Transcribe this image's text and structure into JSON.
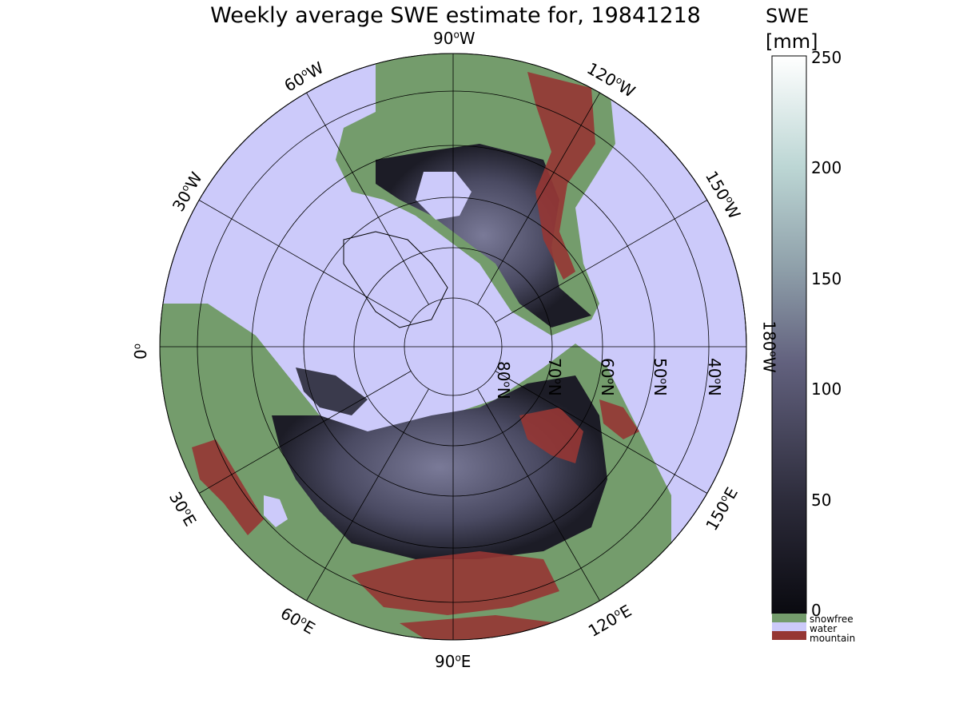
{
  "title": "Weekly average SWE estimate for, 19841218",
  "colorbar": {
    "title": "SWE",
    "unit": "[mm]",
    "ticks": [
      "0",
      "50",
      "100",
      "150",
      "200",
      "250"
    ],
    "range": [
      0,
      250
    ]
  },
  "legend": [
    {
      "label": "snowfree",
      "color": "#749c6c"
    },
    {
      "label": "water",
      "color": "#cccafa"
    },
    {
      "label": "mountain",
      "color": "#963634"
    }
  ],
  "longitude_labels": [
    "0",
    "30E",
    "60E",
    "90E",
    "120E",
    "150E",
    "180W",
    "150W",
    "120W",
    "90W",
    "60W",
    "30W"
  ],
  "latitude_labels": [
    "80N",
    "70N",
    "60N",
    "50N",
    "40N"
  ],
  "colors": {
    "water": "#cccafa",
    "snowfree": "#749c6c",
    "mountain": "#963634",
    "swe_low": "#0a0a12",
    "swe_mid": "#6a6a8c",
    "swe_high": "#ffffff"
  }
}
